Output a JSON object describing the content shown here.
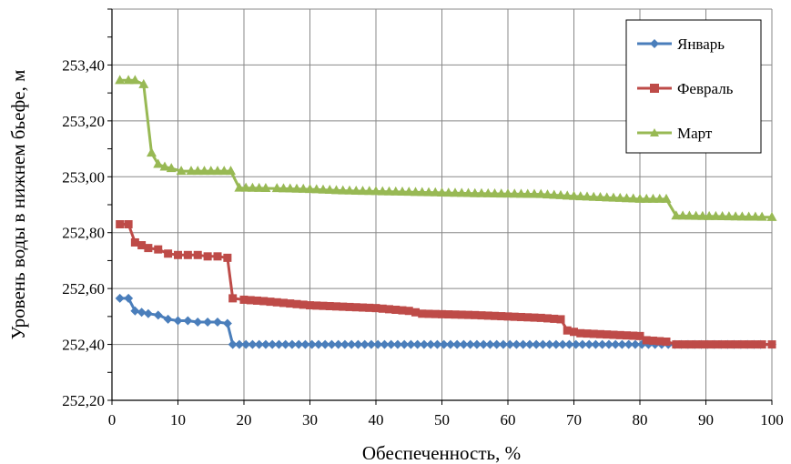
{
  "chart_data": {
    "type": "line",
    "title": "",
    "xlabel": "Обеспеченность, %",
    "ylabel": "Уровень воды в нижнем бьефе, м",
    "xlim": [
      0,
      100
    ],
    "ylim": [
      252.2,
      253.6
    ],
    "x_ticks": [
      0,
      10,
      20,
      30,
      40,
      50,
      60,
      70,
      80,
      90,
      100
    ],
    "y_ticks": [
      252.2,
      252.4,
      252.6,
      252.8,
      253.0,
      253.2,
      253.4
    ],
    "x_tick_labels": [
      "0",
      "10",
      "20",
      "30",
      "40",
      "50",
      "60",
      "70",
      "80",
      "90",
      "100"
    ],
    "y_tick_labels": [
      "252,20",
      "252,40",
      "252,60",
      "252,80",
      "253,00",
      "253,20",
      "253,40"
    ],
    "grid": true,
    "legend_position": "top-right",
    "series": [
      {
        "name": "Январь",
        "color": "#4a7ebb",
        "marker": "diamond",
        "points": [
          [
            1.2,
            252.565
          ],
          [
            2.5,
            252.565
          ],
          [
            3.5,
            252.52
          ],
          [
            4.5,
            252.515
          ],
          [
            5.5,
            252.51
          ],
          [
            7,
            252.505
          ],
          [
            8.5,
            252.49
          ],
          [
            10,
            252.485
          ],
          [
            11.5,
            252.485
          ],
          [
            13,
            252.48
          ],
          [
            14.5,
            252.48
          ],
          [
            16,
            252.48
          ],
          [
            17.5,
            252.475
          ],
          [
            18.3,
            252.4
          ],
          [
            100,
            252.4
          ]
        ]
      },
      {
        "name": "Февраль",
        "color": "#be4b48",
        "marker": "square",
        "points": [
          [
            1.2,
            252.83
          ],
          [
            2.5,
            252.83
          ],
          [
            3.5,
            252.765
          ],
          [
            4.5,
            252.755
          ],
          [
            5.5,
            252.745
          ],
          [
            7,
            252.74
          ],
          [
            8.5,
            252.725
          ],
          [
            10,
            252.72
          ],
          [
            11.5,
            252.72
          ],
          [
            13,
            252.72
          ],
          [
            14.5,
            252.715
          ],
          [
            16,
            252.715
          ],
          [
            17.5,
            252.71
          ],
          [
            18.3,
            252.565
          ],
          [
            20,
            252.56
          ],
          [
            23,
            252.555
          ],
          [
            30,
            252.54
          ],
          [
            40,
            252.53
          ],
          [
            45,
            252.52
          ],
          [
            47,
            252.51
          ],
          [
            55,
            252.505
          ],
          [
            60,
            252.5
          ],
          [
            65,
            252.495
          ],
          [
            68,
            252.49
          ],
          [
            69,
            252.45
          ],
          [
            71,
            252.44
          ],
          [
            80,
            252.43
          ],
          [
            81,
            252.415
          ],
          [
            84,
            252.41
          ],
          [
            85.5,
            252.4
          ],
          [
            100,
            252.4
          ]
        ]
      },
      {
        "name": "Март",
        "color": "#98b954",
        "marker": "triangle",
        "points": [
          [
            1.2,
            253.345
          ],
          [
            2.5,
            253.345
          ],
          [
            3.5,
            253.345
          ],
          [
            4.8,
            253.33
          ],
          [
            6,
            253.085
          ],
          [
            7,
            253.045
          ],
          [
            8,
            253.035
          ],
          [
            9,
            253.03
          ],
          [
            10.5,
            253.02
          ],
          [
            12,
            253.02
          ],
          [
            14,
            253.02
          ],
          [
            16,
            253.02
          ],
          [
            18,
            253.02
          ],
          [
            19.3,
            252.96
          ],
          [
            25,
            252.958
          ],
          [
            30,
            252.955
          ],
          [
            35,
            252.95
          ],
          [
            45,
            252.945
          ],
          [
            55,
            252.94
          ],
          [
            65,
            252.937
          ],
          [
            70,
            252.93
          ],
          [
            75,
            252.925
          ],
          [
            80,
            252.92
          ],
          [
            84,
            252.92
          ],
          [
            85.5,
            252.86
          ],
          [
            100,
            252.855
          ]
        ]
      }
    ]
  }
}
